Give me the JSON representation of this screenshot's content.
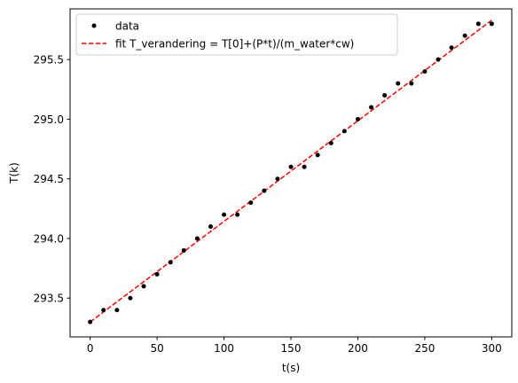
{
  "chart_data": {
    "type": "scatter",
    "xlabel": "t(s)",
    "ylabel": "T(k)",
    "xlim": [
      -15,
      315
    ],
    "ylim": [
      293.175,
      295.925
    ],
    "xticks": [
      0,
      50,
      100,
      150,
      200,
      250,
      300
    ],
    "xtick_labels": [
      "0",
      "50",
      "100",
      "150",
      "200",
      "250",
      "300"
    ],
    "yticks": [
      293.5,
      294.0,
      294.5,
      295.0,
      295.5
    ],
    "ytick_labels": [
      "293.5",
      "294.0",
      "294.5",
      "295.0",
      "295.5"
    ],
    "grid": false,
    "legend_position": "top-left",
    "series": [
      {
        "name": "data",
        "style": "points",
        "color": "#000000",
        "x": [
          0,
          10,
          20,
          30,
          40,
          50,
          60,
          70,
          80,
          90,
          100,
          110,
          120,
          130,
          140,
          150,
          160,
          170,
          180,
          190,
          200,
          210,
          220,
          230,
          240,
          250,
          260,
          270,
          280,
          290,
          300
        ],
        "y": [
          293.3,
          293.4,
          293.4,
          293.5,
          293.6,
          293.7,
          293.8,
          293.9,
          294.0,
          294.1,
          294.2,
          294.2,
          294.3,
          294.4,
          294.5,
          294.6,
          294.6,
          294.7,
          294.8,
          294.9,
          295.0,
          295.1,
          295.2,
          295.3,
          295.3,
          295.4,
          295.5,
          295.6,
          295.7,
          295.8,
          295.8
        ]
      },
      {
        "name": "fit T_verandering = T[0]+(P*t)/(m_water*cw)",
        "style": "dashed-line",
        "color": "#ff0000",
        "x": [
          0,
          300
        ],
        "y": [
          293.3,
          295.83
        ]
      }
    ]
  }
}
